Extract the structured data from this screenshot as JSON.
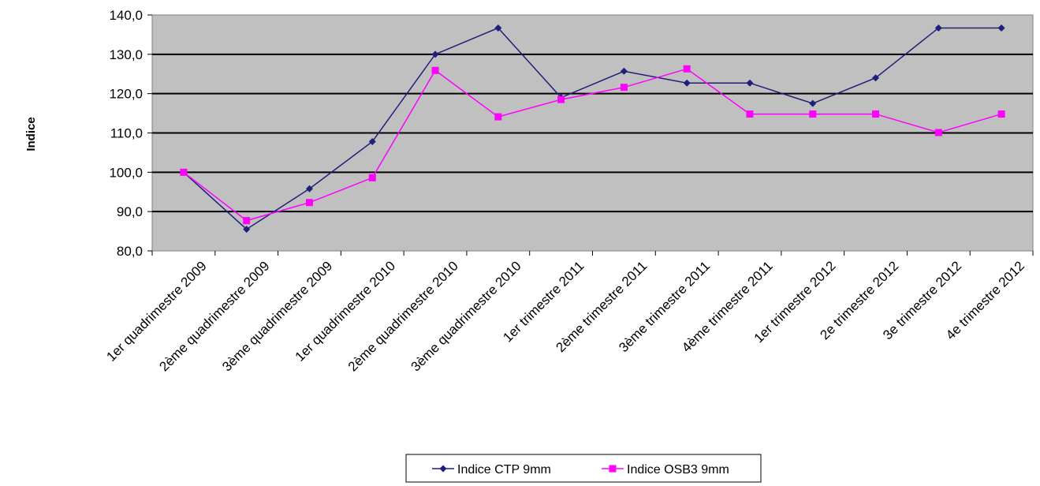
{
  "chart_data": {
    "type": "line",
    "title": "",
    "xlabel": "",
    "ylabel": "Indice",
    "ylim": [
      80,
      140
    ],
    "yticks": [
      80,
      90,
      100,
      110,
      120,
      130,
      140
    ],
    "ytick_labels": [
      "80,0",
      "90,0",
      "100,0",
      "110,0",
      "120,0",
      "130,0",
      "140,0"
    ],
    "grid": true,
    "legend_position": "bottom",
    "plot_background": "#C0C0C0",
    "categories": [
      "1er quadrimestre 2009",
      "2ème quadrimestre 2009",
      "3ème quadrimestre 2009",
      "1er quadrimestre 2010",
      "2ème quadrimestre 2010",
      "3ème quadrimestre 2010",
      "1er trimestre 2011",
      "2ème trimestre 2011",
      "3ème trimestre 2011",
      "4ème trimestre 2011",
      "1er trimestre 2012",
      "2e trimestre 2012",
      "3e trimestre 2012",
      "4e trimestre 2012"
    ],
    "series": [
      {
        "name": "Indice CTP 9mm",
        "color": "#1F1F7A",
        "marker": "diamond",
        "values": [
          100.0,
          85.5,
          95.8,
          107.8,
          130.0,
          136.7,
          119.0,
          125.7,
          122.7,
          122.7,
          117.5,
          124.0,
          136.7,
          136.7
        ]
      },
      {
        "name": "Indice OSB3 9mm",
        "color": "#FF00FF",
        "marker": "square",
        "values": [
          100.0,
          87.7,
          92.3,
          98.6,
          125.9,
          114.1,
          118.5,
          121.6,
          126.3,
          114.8,
          114.8,
          114.8,
          110.1,
          114.8
        ]
      }
    ]
  }
}
